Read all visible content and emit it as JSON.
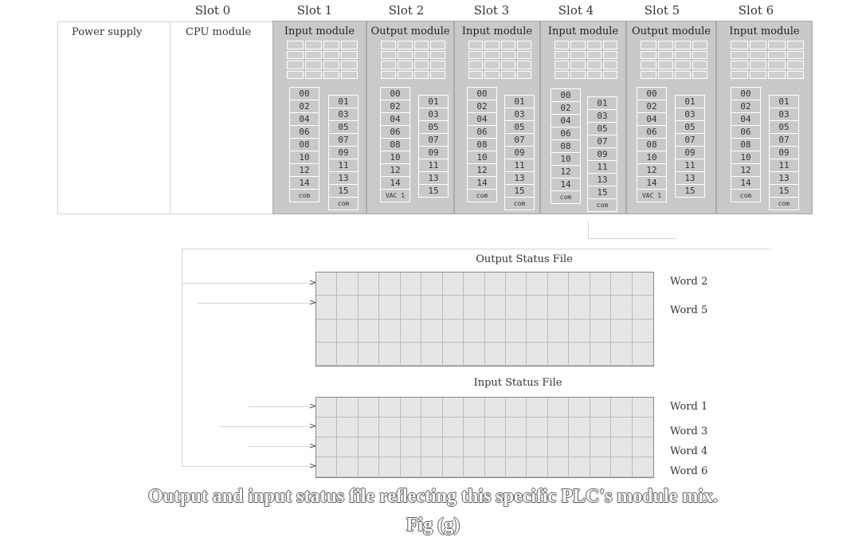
{
  "slots": [
    "Slot 0",
    "Slot 1",
    "Slot 2",
    "Slot 3",
    "Slot 4",
    "Slot 5",
    "Slot 6"
  ],
  "left_labels": {
    "power_supply": "Power supply",
    "cpu_module": "CPU module"
  },
  "modules": [
    {
      "title": "Input module",
      "left_terms": [
        "00",
        "02",
        "04",
        "06",
        "08",
        "10",
        "12",
        "14",
        "com"
      ],
      "right_terms": [
        "01",
        "03",
        "05",
        "07",
        "09",
        "11",
        "13",
        "15",
        "com"
      ]
    },
    {
      "title": "Output module",
      "left_terms": [
        "00",
        "02",
        "04",
        "06",
        "08",
        "10",
        "12",
        "14",
        "VAC 1"
      ],
      "right_terms": [
        "01",
        "03",
        "05",
        "07",
        "09",
        "11",
        "13",
        "15"
      ]
    },
    {
      "title": "Input module",
      "left_terms": [
        "00",
        "02",
        "04",
        "06",
        "08",
        "10",
        "12",
        "14",
        "com"
      ],
      "right_terms": [
        "01",
        "03",
        "05",
        "07",
        "09",
        "11",
        "13",
        "15",
        "com"
      ]
    },
    {
      "title": "Input module",
      "left_terms": [
        "00",
        "02",
        "04",
        "06",
        "08",
        "10",
        "12",
        "14",
        "com"
      ],
      "right_terms": [
        "01",
        "03",
        "05",
        "07",
        "09",
        "11",
        "13",
        "15",
        "com"
      ]
    },
    {
      "title": "Output module",
      "left_terms": [
        "00",
        "02",
        "04",
        "06",
        "08",
        "10",
        "12",
        "14",
        "VAC 1"
      ],
      "right_terms": [
        "01",
        "03",
        "05",
        "07",
        "09",
        "11",
        "13",
        "15"
      ]
    },
    {
      "title": "Input module",
      "left_terms": [
        "00",
        "02",
        "04",
        "06",
        "08",
        "10",
        "12",
        "14",
        "com"
      ],
      "right_terms": [
        "01",
        "03",
        "05",
        "07",
        "09",
        "11",
        "13",
        "15",
        "com"
      ]
    }
  ],
  "output_status_file": {
    "title": "Output Status File",
    "words": [
      "Word 2",
      "Word 5"
    ]
  },
  "input_status_file": {
    "title": "Input Status File",
    "words": [
      "Word 1",
      "Word 3",
      "Word 4",
      "Word 6"
    ]
  },
  "caption": {
    "line1": "Output and input status file reflecting this specific PLC's module mix.",
    "line2": "Fig (g)"
  }
}
